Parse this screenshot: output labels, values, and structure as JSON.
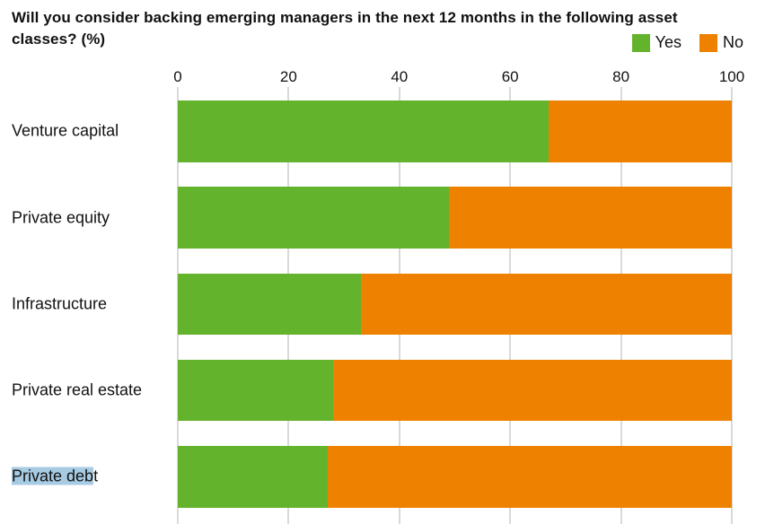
{
  "title": "Will you consider backing emerging managers in the next 12 months in the following asset\nclasses? (%)",
  "chart_data": {
    "type": "bar",
    "variant": "horizontal-stacked",
    "title": "Will you consider backing emerging managers in the next 12 months in the following asset classes? (%)",
    "categories": [
      "Venture capital",
      "Private equity",
      "Infrastructure",
      "Private real estate",
      "Private debt"
    ],
    "series": [
      {
        "name": "Yes",
        "color": "#64b32d",
        "values": [
          67,
          49,
          33,
          28,
          27
        ]
      },
      {
        "name": "No",
        "color": "#ee8200",
        "values": [
          33,
          51,
          67,
          72,
          73
        ]
      }
    ],
    "xlim": [
      0,
      100
    ],
    "xticks": [
      0,
      20,
      40,
      60,
      80,
      100
    ],
    "grid": true,
    "gridline_color": "#d9d9d9",
    "legend_position": "top-right"
  },
  "selection": {
    "category_index": 4,
    "selected_text": "Private deb",
    "highlight_color": "#a7cbe3"
  }
}
